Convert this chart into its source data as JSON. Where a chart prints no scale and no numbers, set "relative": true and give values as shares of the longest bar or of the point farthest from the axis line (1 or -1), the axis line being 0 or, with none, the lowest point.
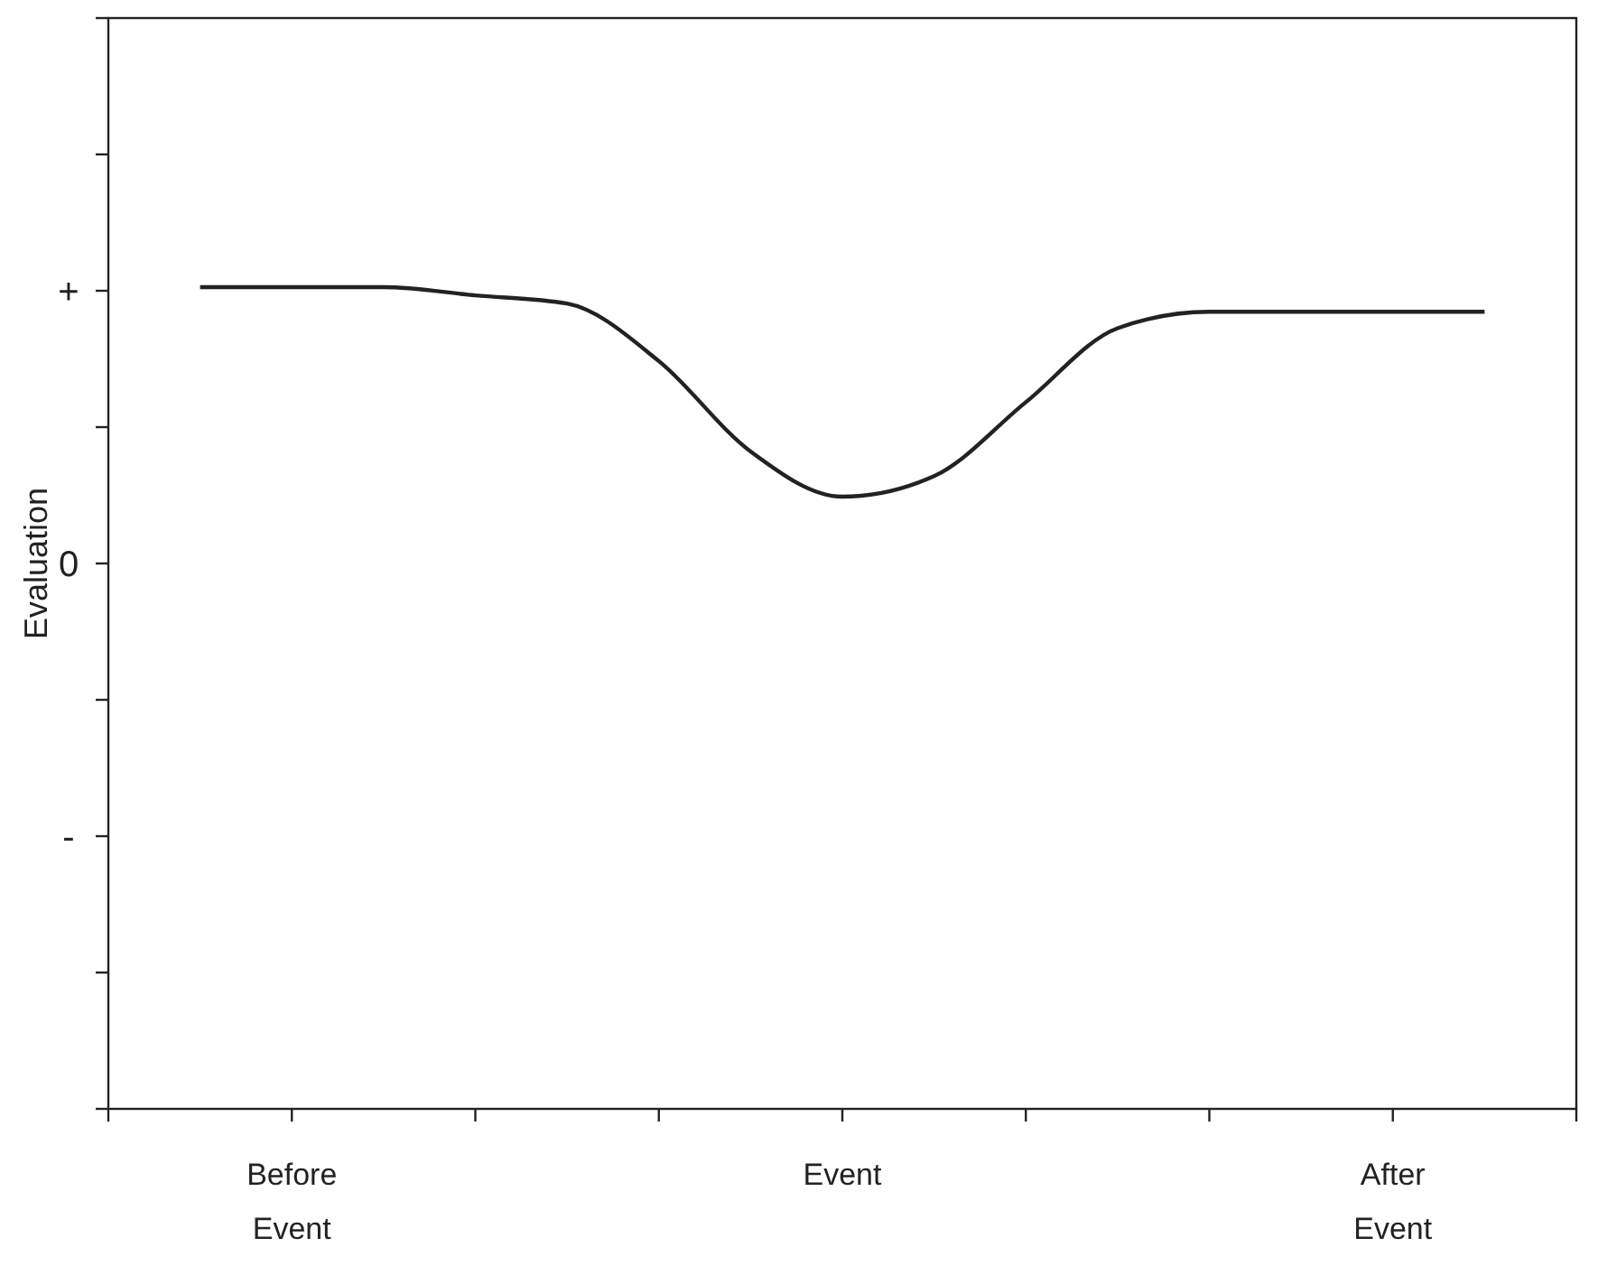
{
  "chart_data": {
    "type": "line",
    "ylabel": "Evaluation",
    "relative": true,
    "categories": [
      null,
      null,
      "Before Event",
      null,
      null,
      null,
      null,
      null,
      "Event",
      null,
      null,
      null,
      null,
      null,
      "After Event",
      null,
      null
    ],
    "series": [
      {
        "color": "#222222",
        "values": [
          null,
          1.0,
          1.0,
          1.0,
          0.99,
          0.98,
          0.91,
          0.8,
          0.745,
          0.77,
          0.86,
          0.95,
          0.97,
          0.97,
          0.97,
          0.97,
          null
        ]
      }
    ],
    "annotations": [
      "+",
      "0",
      "-"
    ],
    "line_style": "solid"
  }
}
